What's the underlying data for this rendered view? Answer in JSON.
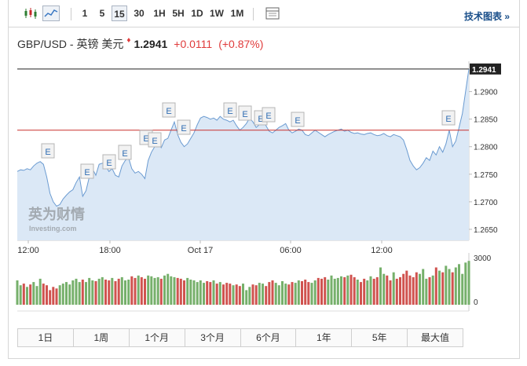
{
  "toolbar": {
    "intervals": [
      "1",
      "5",
      "15",
      "30",
      "1H",
      "5H",
      "1D",
      "1W",
      "1M"
    ],
    "selected_interval": "15",
    "tech_chart_label": "技术图表",
    "tech_chart_arrow": "»"
  },
  "quote": {
    "symbol": "GBP/USD - 英镑 美元",
    "arrow": "♦",
    "last": "1.2941",
    "change": "+0.0111",
    "change_pct": "(+0.87%)"
  },
  "watermark": {
    "cn": "英为财情",
    "en": "Investing.com"
  },
  "event_marker_label": "E",
  "colors": {
    "line": "#6b9bd1",
    "area": "#dbe8f6",
    "ref_line": "#c9302c",
    "up_bar": "#76b06b",
    "down_bar": "#d0534f",
    "text_red": "#e03b3b",
    "link": "#1a4f8a"
  },
  "ranges": [
    "1日",
    "1周",
    "1个月",
    "3个月",
    "6个月",
    "1年",
    "5年",
    "最大值"
  ],
  "chart_data": {
    "type": "area",
    "x_tick_labels": [
      "12:00",
      "18:00",
      "Oct 17",
      "06:00",
      "12:00"
    ],
    "y_tick_labels": [
      "1.2900",
      "1.2850",
      "1.2800",
      "1.2750",
      "1.2700",
      "1.2650"
    ],
    "ylim": [
      1.263,
      1.2955
    ],
    "last_price_label": "1.2941",
    "reference_price": 1.283,
    "series": [
      {
        "values": [
          1.2755,
          1.2758,
          1.2757,
          1.276,
          1.2758,
          1.2765,
          1.277,
          1.2773,
          1.2768,
          1.2745,
          1.2715,
          1.27,
          1.2692,
          1.2695,
          1.2705,
          1.2712,
          1.2718,
          1.2722,
          1.2735,
          1.2745,
          1.271,
          1.272,
          1.2745,
          1.276,
          1.2748,
          1.2768,
          1.277,
          1.2765,
          1.2755,
          1.276,
          1.2748,
          1.2745,
          1.2765,
          1.2775,
          1.278,
          1.276,
          1.2752,
          1.2755,
          1.275,
          1.2742,
          1.2775,
          1.279,
          1.28,
          1.2805,
          1.2798,
          1.2812,
          1.2815,
          1.283,
          1.2845,
          1.2822,
          1.2808,
          1.28,
          1.2805,
          1.2815,
          1.2825,
          1.284,
          1.2852,
          1.2855,
          1.2853,
          1.285,
          1.2852,
          1.2848,
          1.2855,
          1.285,
          1.2848,
          1.2845,
          1.2848,
          1.2838,
          1.283,
          1.2835,
          1.2842,
          1.2852,
          1.2845,
          1.2835,
          1.284,
          1.2848,
          1.2838,
          1.2828,
          1.2825,
          1.283,
          1.2835,
          1.2838,
          1.2842,
          1.283,
          1.2825,
          1.2828,
          1.2832,
          1.283,
          1.2822,
          1.282,
          1.2825,
          1.283,
          1.2826,
          1.2822,
          1.2818,
          1.2822,
          1.2825,
          1.2828,
          1.283,
          1.2832,
          1.2828,
          1.283,
          1.2826,
          1.2824,
          1.2825,
          1.2823,
          1.2822,
          1.2824,
          1.2825,
          1.2822,
          1.282,
          1.2821,
          1.2824,
          1.282,
          1.2818,
          1.2822,
          1.282,
          1.2818,
          1.2812,
          1.2795,
          1.2775,
          1.2765,
          1.2758,
          1.2762,
          1.277,
          1.278,
          1.2775,
          1.2792,
          1.2785,
          1.28,
          1.279,
          1.2805,
          1.283,
          1.28,
          1.281,
          1.2835,
          1.286,
          1.29,
          1.2941
        ]
      }
    ],
    "volume_axis_labels": [
      "3000",
      "0"
    ],
    "volume_max": 3000,
    "volume_values": [
      1500,
      1200,
      1300,
      1100,
      1250,
      1400,
      1150,
      1600,
      1300,
      1200,
      900,
      1100,
      1000,
      1200,
      1300,
      1400,
      1250,
      1500,
      1600,
      1400,
      1550,
      1400,
      1650,
      1500,
      1450,
      1600,
      1700,
      1550,
      1500,
      1650,
      1450,
      1600,
      1700,
      1500,
      1550,
      1750,
      1650,
      1800,
      1700,
      1600,
      1800,
      1750,
      1650,
      1700,
      1600,
      1800,
      1900,
      1750,
      1700,
      1650,
      1600,
      1500,
      1650,
      1550,
      1500,
      1400,
      1500,
      1350,
      1450,
      1400,
      1500,
      1300,
      1400,
      1250,
      1350,
      1300,
      1200,
      1250,
      1150,
      1300,
      900,
      1100,
      1250,
      1200,
      1350,
      1300,
      1150,
      1400,
      1500,
      1350,
      1200,
      1450,
      1300,
      1250,
      1400,
      1350,
      1500,
      1450,
      1550,
      1400,
      1350,
      1500,
      1650,
      1600,
      1700,
      1550,
      1800,
      1600,
      1650,
      1750,
      1700,
      1800,
      1850,
      1700,
      1550,
      1400,
      1600,
      1500,
      1750,
      1600,
      1700,
      2300,
      1900,
      1800,
      1500,
      2000,
      1600,
      1700,
      1900,
      2100,
      1800,
      1700,
      2000,
      1900,
      2200,
      1600,
      1700,
      1800,
      2300,
      2100,
      2000,
      2400,
      2200,
      2000,
      2300,
      2500,
      1900,
      2600,
      2700
    ]
  }
}
